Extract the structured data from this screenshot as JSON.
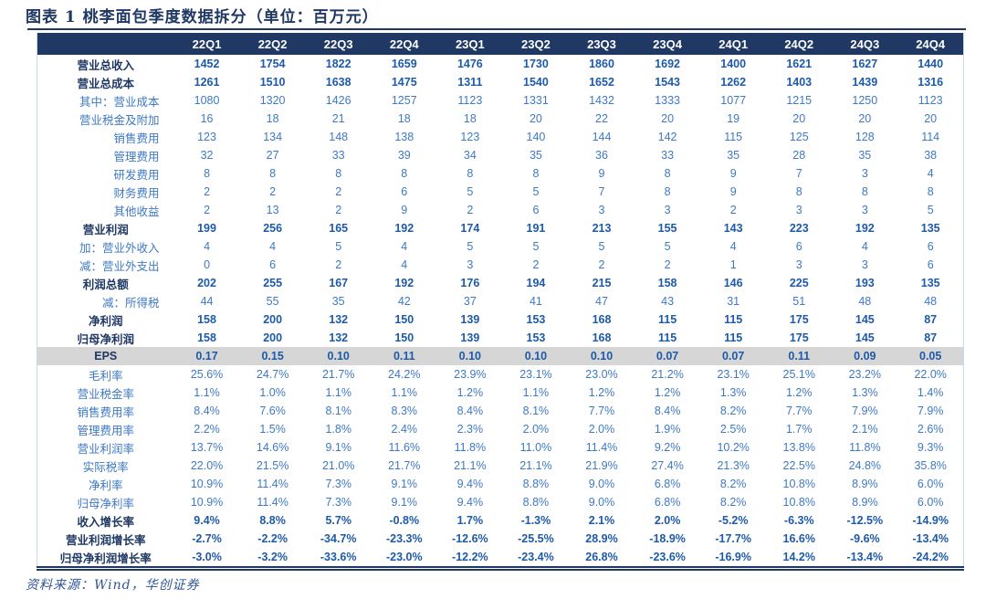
{
  "figure": {
    "title": "图表 1  桃李面包季度数据拆分（单位：百万元）",
    "source": "资料来源：Wind，华创证券"
  },
  "colors": {
    "header_bg": "#1F3864",
    "accent_navy": "#1F3864",
    "value_blue_bold": "#1D5AA8",
    "value_blue_regular": "#3E79C4",
    "highlight_row_bg": "#D6D6D6"
  },
  "chart_data": {
    "type": "table",
    "title": "桃李面包季度数据拆分",
    "unit": "百万元",
    "columns": [
      "22Q1",
      "22Q2",
      "22Q3",
      "22Q4",
      "23Q1",
      "23Q2",
      "23Q3",
      "23Q4",
      "24Q1",
      "24Q2",
      "24Q3",
      "24Q4"
    ],
    "rows": [
      {
        "label": "营业总收入",
        "bold": true,
        "align": "center",
        "highlight": false,
        "values": [
          "1452",
          "1754",
          "1822",
          "1659",
          "1476",
          "1730",
          "1860",
          "1692",
          "1400",
          "1621",
          "1627",
          "1440"
        ]
      },
      {
        "label": "营业总成本",
        "bold": true,
        "align": "center",
        "highlight": false,
        "values": [
          "1261",
          "1510",
          "1638",
          "1475",
          "1311",
          "1540",
          "1652",
          "1543",
          "1262",
          "1403",
          "1439",
          "1316"
        ]
      },
      {
        "label": "其中：营业成本",
        "bold": false,
        "align": "right",
        "highlight": false,
        "values": [
          "1080",
          "1320",
          "1426",
          "1257",
          "1123",
          "1331",
          "1432",
          "1333",
          "1077",
          "1215",
          "1250",
          "1123"
        ]
      },
      {
        "label": "营业税金及附加",
        "bold": false,
        "align": "right",
        "highlight": false,
        "values": [
          "16",
          "18",
          "21",
          "18",
          "18",
          "20",
          "22",
          "20",
          "19",
          "20",
          "20",
          "20"
        ]
      },
      {
        "label": "销售费用",
        "bold": false,
        "align": "right",
        "highlight": false,
        "values": [
          "123",
          "134",
          "148",
          "138",
          "123",
          "140",
          "144",
          "142",
          "115",
          "125",
          "128",
          "114"
        ]
      },
      {
        "label": "管理费用",
        "bold": false,
        "align": "right",
        "highlight": false,
        "values": [
          "32",
          "27",
          "33",
          "39",
          "34",
          "35",
          "36",
          "33",
          "35",
          "28",
          "35",
          "38"
        ]
      },
      {
        "label": "研发费用",
        "bold": false,
        "align": "right",
        "highlight": false,
        "values": [
          "8",
          "8",
          "8",
          "8",
          "8",
          "8",
          "9",
          "8",
          "9",
          "7",
          "3",
          "4"
        ]
      },
      {
        "label": "财务费用",
        "bold": false,
        "align": "right",
        "highlight": false,
        "values": [
          "2",
          "2",
          "2",
          "6",
          "5",
          "5",
          "7",
          "8",
          "9",
          "8",
          "8",
          "8"
        ]
      },
      {
        "label": "其他收益",
        "bold": false,
        "align": "right",
        "highlight": false,
        "values": [
          "2",
          "13",
          "2",
          "9",
          "2",
          "6",
          "3",
          "3",
          "2",
          "3",
          "3",
          "5"
        ]
      },
      {
        "label": "营业利润",
        "bold": true,
        "align": "center",
        "highlight": false,
        "values": [
          "199",
          "256",
          "165",
          "192",
          "174",
          "191",
          "213",
          "155",
          "143",
          "223",
          "192",
          "135"
        ]
      },
      {
        "label": "加：营业外收入",
        "bold": false,
        "align": "right",
        "highlight": false,
        "values": [
          "4",
          "4",
          "5",
          "4",
          "5",
          "5",
          "5",
          "5",
          "4",
          "6",
          "4",
          "6"
        ]
      },
      {
        "label": "减：营业外支出",
        "bold": false,
        "align": "right",
        "highlight": false,
        "values": [
          "0",
          "6",
          "2",
          "4",
          "3",
          "2",
          "2",
          "2",
          "1",
          "3",
          "3",
          "6"
        ]
      },
      {
        "label": "利润总额",
        "bold": true,
        "align": "center",
        "highlight": false,
        "values": [
          "202",
          "255",
          "167",
          "192",
          "176",
          "194",
          "215",
          "158",
          "146",
          "225",
          "193",
          "135"
        ]
      },
      {
        "label": "减：所得税",
        "bold": false,
        "align": "right",
        "highlight": false,
        "values": [
          "44",
          "55",
          "35",
          "42",
          "37",
          "41",
          "47",
          "43",
          "31",
          "51",
          "48",
          "48"
        ]
      },
      {
        "label": "净利润",
        "bold": true,
        "align": "center",
        "highlight": false,
        "values": [
          "158",
          "200",
          "132",
          "150",
          "139",
          "153",
          "168",
          "115",
          "115",
          "175",
          "145",
          "87"
        ]
      },
      {
        "label": "归母净利润",
        "bold": true,
        "align": "center",
        "highlight": false,
        "values": [
          "158",
          "200",
          "132",
          "150",
          "139",
          "153",
          "168",
          "115",
          "115",
          "175",
          "145",
          "87"
        ]
      },
      {
        "label": "EPS",
        "bold": true,
        "align": "center",
        "highlight": true,
        "values": [
          "0.17",
          "0.15",
          "0.10",
          "0.11",
          "0.10",
          "0.10",
          "0.10",
          "0.07",
          "0.07",
          "0.11",
          "0.09",
          "0.05"
        ]
      },
      {
        "label": "毛利率",
        "bold": false,
        "align": "center",
        "highlight": false,
        "values": [
          "25.6%",
          "24.7%",
          "21.7%",
          "24.2%",
          "23.9%",
          "23.1%",
          "23.0%",
          "21.2%",
          "23.1%",
          "25.1%",
          "23.2%",
          "22.0%"
        ]
      },
      {
        "label": "营业税金率",
        "bold": false,
        "align": "center",
        "highlight": false,
        "values": [
          "1.1%",
          "1.0%",
          "1.1%",
          "1.1%",
          "1.2%",
          "1.1%",
          "1.2%",
          "1.2%",
          "1.3%",
          "1.2%",
          "1.3%",
          "1.4%"
        ]
      },
      {
        "label": "销售费用率",
        "bold": false,
        "align": "center",
        "highlight": false,
        "values": [
          "8.4%",
          "7.6%",
          "8.1%",
          "8.3%",
          "8.4%",
          "8.1%",
          "7.7%",
          "8.4%",
          "8.2%",
          "7.7%",
          "7.9%",
          "7.9%"
        ]
      },
      {
        "label": "管理费用率",
        "bold": false,
        "align": "center",
        "highlight": false,
        "values": [
          "2.2%",
          "1.5%",
          "1.8%",
          "2.4%",
          "2.3%",
          "2.0%",
          "2.0%",
          "1.9%",
          "2.5%",
          "1.7%",
          "2.1%",
          "2.6%"
        ]
      },
      {
        "label": "营业利润率",
        "bold": false,
        "align": "center",
        "highlight": false,
        "values": [
          "13.7%",
          "14.6%",
          "9.1%",
          "11.6%",
          "11.8%",
          "11.0%",
          "11.4%",
          "9.2%",
          "10.2%",
          "13.8%",
          "11.8%",
          "9.3%"
        ]
      },
      {
        "label": "实际税率",
        "bold": false,
        "align": "center",
        "highlight": false,
        "values": [
          "22.0%",
          "21.5%",
          "21.0%",
          "21.7%",
          "21.1%",
          "21.1%",
          "21.9%",
          "27.4%",
          "21.3%",
          "22.5%",
          "24.8%",
          "35.8%"
        ]
      },
      {
        "label": "净利率",
        "bold": false,
        "align": "center",
        "highlight": false,
        "values": [
          "10.9%",
          "11.4%",
          "7.3%",
          "9.1%",
          "9.4%",
          "8.8%",
          "9.0%",
          "6.8%",
          "8.2%",
          "10.8%",
          "8.9%",
          "6.0%"
        ]
      },
      {
        "label": "归母净利率",
        "bold": false,
        "align": "center",
        "highlight": false,
        "values": [
          "10.9%",
          "11.4%",
          "7.3%",
          "9.1%",
          "9.4%",
          "8.8%",
          "9.0%",
          "6.8%",
          "8.2%",
          "10.8%",
          "8.9%",
          "6.0%"
        ]
      },
      {
        "label": "收入增长率",
        "bold": true,
        "align": "center",
        "highlight": false,
        "values": [
          "9.4%",
          "8.8%",
          "5.7%",
          "-0.8%",
          "1.7%",
          "-1.3%",
          "2.1%",
          "2.0%",
          "-5.2%",
          "-6.3%",
          "-12.5%",
          "-14.9%"
        ]
      },
      {
        "label": "营业利润增长率",
        "bold": true,
        "align": "center",
        "highlight": false,
        "values": [
          "-2.7%",
          "-2.2%",
          "-34.7%",
          "-23.3%",
          "-12.6%",
          "-25.5%",
          "28.9%",
          "-18.9%",
          "-17.7%",
          "16.6%",
          "-9.6%",
          "-13.4%"
        ]
      },
      {
        "label": "归母净利润增长率",
        "bold": true,
        "align": "center",
        "highlight": false,
        "values": [
          "-3.0%",
          "-3.2%",
          "-33.6%",
          "-23.0%",
          "-12.2%",
          "-23.4%",
          "26.8%",
          "-23.6%",
          "-16.9%",
          "14.2%",
          "-13.4%",
          "-24.2%"
        ]
      }
    ]
  }
}
